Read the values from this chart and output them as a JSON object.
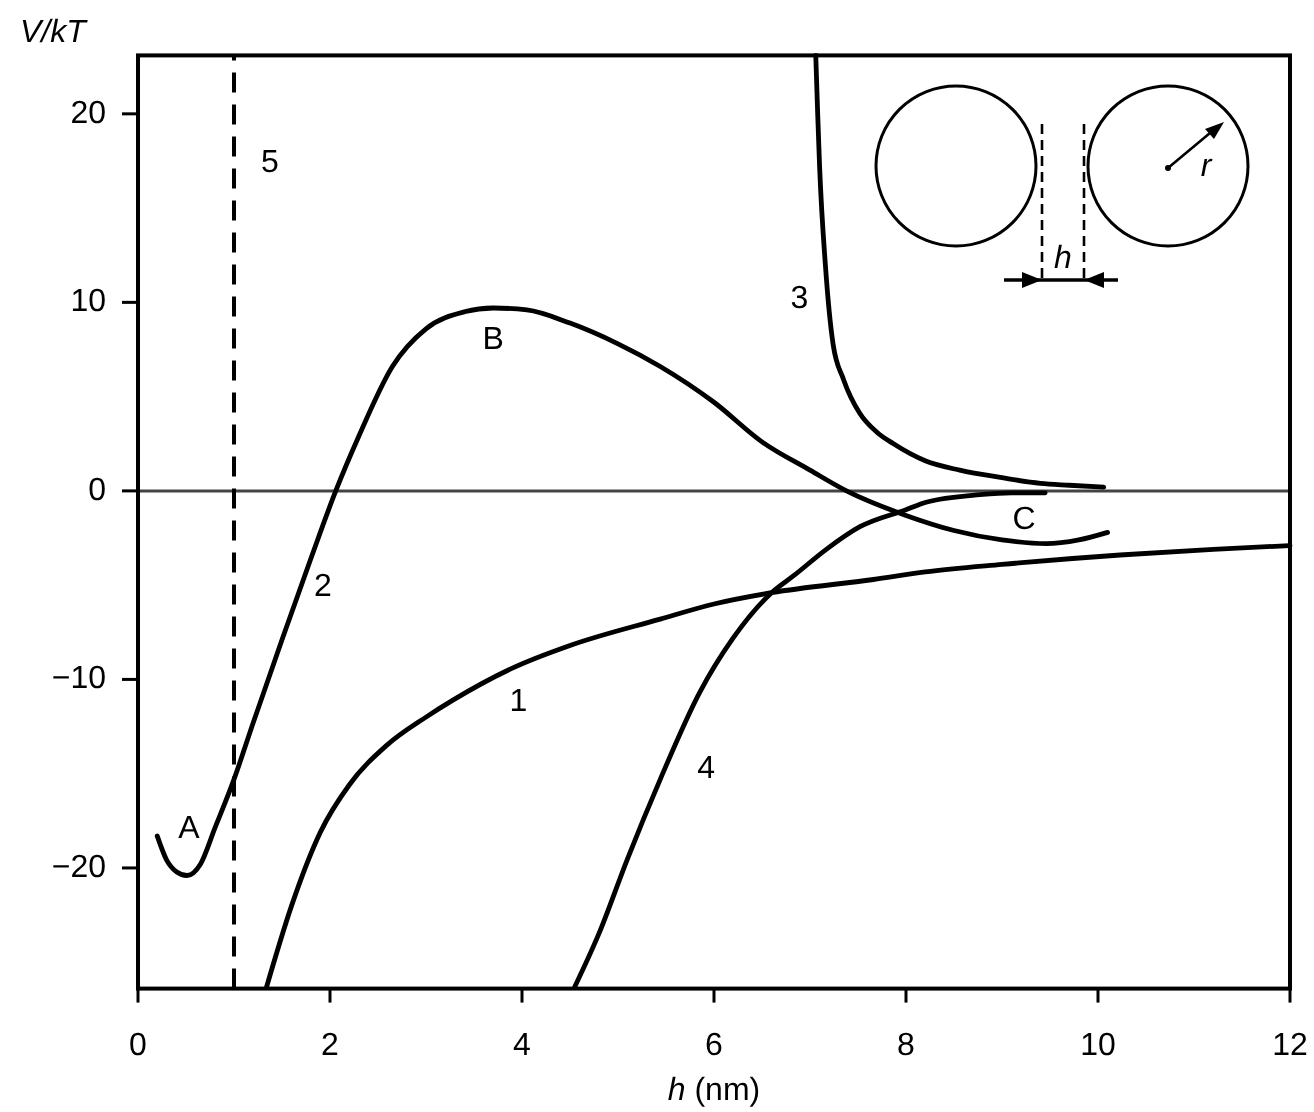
{
  "chart_data": {
    "type": "line",
    "xlabel": "h (nm)",
    "ylabel": "V/kT",
    "xlim": [
      0,
      12
    ],
    "ylim": [
      -26.4,
      23.1
    ],
    "xticks": [
      0,
      2,
      4,
      6,
      8,
      10,
      12
    ],
    "yticks": [
      -20,
      -10,
      0,
      10,
      20
    ],
    "series": [
      {
        "name": "1",
        "color": "#000000",
        "x": [
          1.34,
          1.6,
          1.9,
          2.2,
          2.59,
          3.0,
          3.28,
          3.9,
          4.5,
          5.44,
          6.0,
          6.6,
          7.66,
          8.2,
          9.0,
          10.23,
          11.2,
          12
        ],
        "values": [
          -26.3,
          -22.0,
          -18.1,
          -15.6,
          -13.5,
          -12.0,
          -11.1,
          -9.4,
          -8.2,
          -6.8,
          -6.0,
          -5.4,
          -4.7,
          -4.3,
          -3.9,
          -3.4,
          -3.1,
          -2.9
        ]
      },
      {
        "name": "2",
        "color": "#000000",
        "x": [
          0.2,
          0.3,
          0.4,
          0.51,
          0.65,
          0.8,
          1.0,
          1.2,
          1.5,
          1.8,
          2.06,
          2.3,
          2.65,
          3.0,
          3.4,
          3.7,
          4.05,
          4.5,
          5.0,
          5.44,
          6.0,
          6.5,
          7.0,
          7.38,
          8.0,
          8.5,
          9.0,
          9.46,
          9.8,
          10.1
        ],
        "values": [
          -18.3,
          -19.6,
          -20.2,
          -20.4,
          -19.8,
          -17.9,
          -15.3,
          -12.3,
          -7.9,
          -3.6,
          0,
          2.9,
          6.6,
          8.6,
          9.5,
          9.7,
          9.6,
          8.9,
          7.8,
          6.6,
          4.7,
          2.6,
          1.1,
          0,
          -1.3,
          -2.1,
          -2.6,
          -2.8,
          -2.6,
          -2.2
        ]
      },
      {
        "name": "3",
        "color": "#000000",
        "x": [
          7.06,
          7.08,
          7.1,
          7.16,
          7.24,
          7.35,
          7.52,
          7.7,
          7.87,
          8.2,
          8.56,
          9.0,
          9.4,
          9.7,
          10.06
        ],
        "values": [
          23.1,
          20,
          17.2,
          12,
          7.8,
          5.9,
          4.1,
          3.1,
          2.5,
          1.6,
          1.1,
          0.7,
          0.4,
          0.3,
          0.2
        ]
      },
      {
        "name": "4",
        "color": "#000000",
        "x": [
          4.55,
          4.8,
          5.1,
          5.44,
          5.85,
          6.2,
          6.6,
          6.83,
          7.17,
          7.52,
          8.0,
          8.21,
          8.77,
          9.1,
          9.45
        ],
        "values": [
          -26.3,
          -23.5,
          -19.5,
          -15.3,
          -10.7,
          -7.8,
          -5.4,
          -4.5,
          -3.1,
          -1.9,
          -1.0,
          -0.6,
          -0.2,
          -0.1,
          -0.1
        ]
      },
      {
        "name": "5",
        "color": "#000000",
        "line_style": "dashed",
        "x": [
          1,
          1
        ],
        "values": [
          -26.4,
          23.1
        ]
      }
    ],
    "ref_lines": [
      {
        "axis": "y",
        "value": 0,
        "color": "#444444"
      }
    ],
    "annotations": [
      {
        "text": "A",
        "x": 0.51,
        "y": -20.4
      },
      {
        "text": "B",
        "x": 3.7,
        "y": 9.7
      },
      {
        "text": "C",
        "x": 9.46,
        "y": -2.8
      },
      "h",
      "r"
    ]
  }
}
